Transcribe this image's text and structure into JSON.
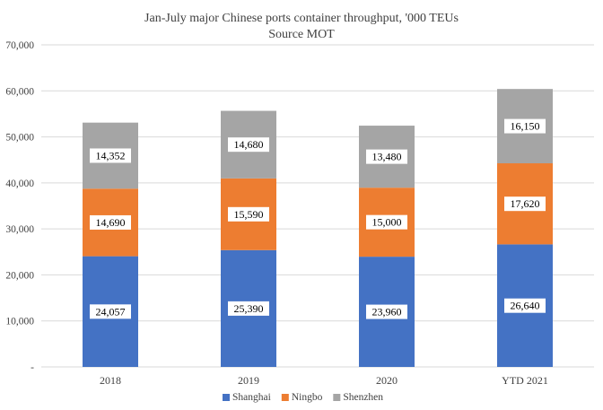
{
  "chart_data": {
    "type": "bar",
    "stacked": true,
    "title": "Jan-July major Chinese ports container throughput, '000 TEUs",
    "subtitle": "Source MOT",
    "categories": [
      "2018",
      "2019",
      "2020",
      "YTD 2021"
    ],
    "series": [
      {
        "name": "Shanghai",
        "color": "#4472c4",
        "values": [
          24057,
          25390,
          23960,
          26640
        ],
        "labels": [
          "24,057",
          "25,390",
          "23,960",
          "26,640"
        ]
      },
      {
        "name": "Ningbo",
        "color": "#ed7d31",
        "values": [
          14690,
          15590,
          15000,
          17620
        ],
        "labels": [
          "14,690",
          "15,590",
          "15,000",
          "17,620"
        ]
      },
      {
        "name": "Shenzhen",
        "color": "#a5a5a5",
        "values": [
          14352,
          14680,
          13480,
          16150
        ],
        "labels": [
          "14,352",
          "14,680",
          "13,480",
          "16,150"
        ]
      }
    ],
    "ylim": [
      0,
      70000
    ],
    "yticks": [
      0,
      10000,
      20000,
      30000,
      40000,
      50000,
      60000,
      70000
    ],
    "ytick_labels": [
      "-",
      "10,000",
      "20,000",
      "30,000",
      "40,000",
      "50,000",
      "60,000",
      "70,000"
    ],
    "grid": true,
    "legend_position": "bottom"
  }
}
